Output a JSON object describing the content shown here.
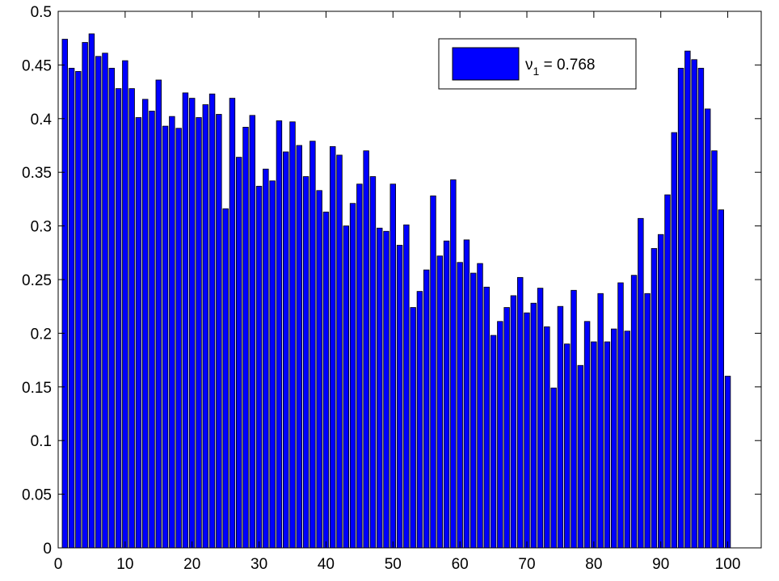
{
  "chart_data": {
    "type": "bar",
    "title": "",
    "xlabel": "",
    "ylabel": "",
    "xlim": [
      0,
      105
    ],
    "ylim": [
      0,
      0.5
    ],
    "x_ticks": [
      0,
      10,
      20,
      30,
      40,
      50,
      60,
      70,
      80,
      90,
      100
    ],
    "y_ticks": [
      0,
      0.05,
      0.1,
      0.15,
      0.2,
      0.25,
      0.3,
      0.35,
      0.4,
      0.45,
      0.5
    ],
    "x_tick_labels": [
      "0",
      "10",
      "20",
      "30",
      "40",
      "50",
      "60",
      "70",
      "80",
      "90",
      "100"
    ],
    "y_tick_labels": [
      "0",
      "0.05",
      "0.1",
      "0.15",
      "0.2",
      "0.25",
      "0.3",
      "0.35",
      "0.4",
      "0.45",
      "0.5"
    ],
    "grid": false,
    "bar_color": "#0000ff",
    "bar_edge_color": "#000000",
    "legend": {
      "placement": "top-right",
      "symbol": "ν",
      "subscript": "1",
      "value_text": " = 0.768"
    },
    "series": [
      {
        "x": [
          1,
          2,
          3,
          4,
          5,
          6,
          7,
          8,
          9,
          10,
          11,
          12,
          13,
          14,
          15,
          16,
          17,
          18,
          19,
          20,
          21,
          22,
          23,
          24,
          25,
          26,
          27,
          28,
          29,
          30,
          31,
          32,
          33,
          34,
          35,
          36,
          37,
          38,
          39,
          40,
          41,
          42,
          43,
          44,
          45,
          46,
          47,
          48,
          49,
          50,
          51,
          52,
          53,
          54,
          55,
          56,
          57,
          58,
          59,
          60,
          61,
          62,
          63,
          64,
          65,
          66,
          67,
          68,
          69,
          70,
          71,
          72,
          73,
          74,
          75,
          76,
          77,
          78,
          79,
          80,
          81,
          82,
          83,
          84,
          85,
          86,
          87,
          88,
          89,
          90,
          91,
          92,
          93,
          94,
          95,
          96,
          97,
          98,
          99,
          100
        ],
        "values": [
          0.474,
          0.447,
          0.444,
          0.471,
          0.479,
          0.458,
          0.461,
          0.447,
          0.428,
          0.454,
          0.428,
          0.401,
          0.418,
          0.407,
          0.436,
          0.393,
          0.402,
          0.391,
          0.424,
          0.419,
          0.401,
          0.413,
          0.423,
          0.404,
          0.316,
          0.419,
          0.364,
          0.392,
          0.403,
          0.337,
          0.353,
          0.342,
          0.398,
          0.369,
          0.397,
          0.375,
          0.346,
          0.379,
          0.333,
          0.313,
          0.374,
          0.366,
          0.3,
          0.321,
          0.339,
          0.37,
          0.346,
          0.298,
          0.295,
          0.339,
          0.282,
          0.301,
          0.224,
          0.239,
          0.259,
          0.328,
          0.272,
          0.286,
          0.343,
          0.266,
          0.287,
          0.256,
          0.265,
          0.243,
          0.198,
          0.211,
          0.224,
          0.235,
          0.252,
          0.219,
          0.228,
          0.242,
          0.206,
          0.149,
          0.225,
          0.19,
          0.24,
          0.17,
          0.211,
          0.192,
          0.237,
          0.192,
          0.204,
          0.247,
          0.202,
          0.254,
          0.307,
          0.237,
          0.279,
          0.292,
          0.329,
          0.387,
          0.447,
          0.463,
          0.455,
          0.447,
          0.409,
          0.37,
          0.315,
          0.16
        ]
      }
    ]
  }
}
